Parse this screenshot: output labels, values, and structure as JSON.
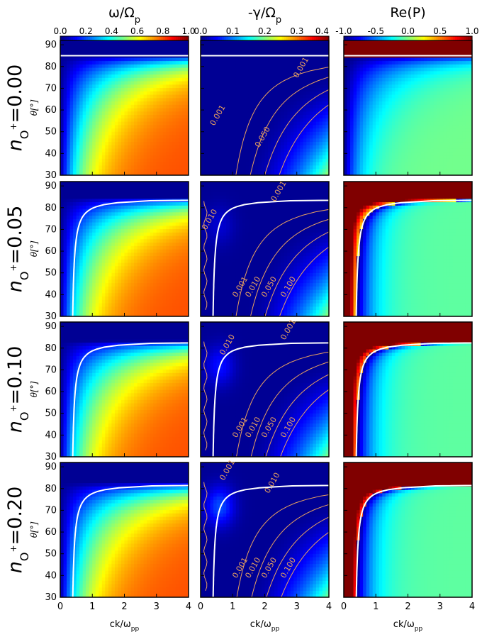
{
  "chart_data": {
    "type": "heatmap",
    "layout": "4 rows x 3 columns of panels sharing axes",
    "columns": [
      {
        "title": "ω/Ω",
        "title_sub": "p",
        "colorbar_ticks": [
          "0.0",
          "0.2",
          "0.4",
          "0.6",
          "0.8",
          "1.0"
        ],
        "colorbar_range": [
          0,
          1
        ]
      },
      {
        "title": "-γ/Ω",
        "title_sub": "p",
        "colorbar_ticks": [
          "0.0",
          "0.1",
          "0.2",
          "0.3",
          "0.4"
        ],
        "colorbar_range": [
          0,
          0.4
        ]
      },
      {
        "title": "Re(P)",
        "title_sub": "",
        "colorbar_ticks": [
          "-1.0",
          "-0.5",
          "0.0",
          "0.5",
          "1.0"
        ],
        "colorbar_range": [
          -1,
          1
        ]
      }
    ],
    "rows": [
      {
        "label_base": "n",
        "label_sub": "O",
        "label_sup": "+",
        "label_value": "=0.00",
        "n_O": 0.0,
        "cutoff_theta": 85.0,
        "contours": [
          {
            "text": "0.001",
            "x": 0.6,
            "y": 57
          },
          {
            "text": "0.050",
            "x": 2.0,
            "y": 47
          },
          {
            "text": "0.001",
            "x": 3.2,
            "y": 79
          }
        ]
      },
      {
        "label_base": "n",
        "label_sub": "O",
        "label_sup": "+",
        "label_value": "=0.05",
        "n_O": 0.05,
        "cutoff_theta": 84.5,
        "contours": [
          {
            "text": "0.001",
            "x": 2.5,
            "y": 87
          },
          {
            "text": "0.010",
            "x": 0.35,
            "y": 74
          },
          {
            "text": "0.001",
            "x": 1.3,
            "y": 43
          },
          {
            "text": "0.010",
            "x": 1.7,
            "y": 43
          },
          {
            "text": "0.050",
            "x": 2.2,
            "y": 43
          },
          {
            "text": "0.100",
            "x": 2.8,
            "y": 43
          }
        ]
      },
      {
        "label_base": "n",
        "label_sub": "O",
        "label_sup": "+",
        "label_value": "=0.10",
        "n_O": 0.1,
        "cutoff_theta": 83.5,
        "contours": [
          {
            "text": "0.001",
            "x": 2.8,
            "y": 88
          },
          {
            "text": "0.010",
            "x": 0.9,
            "y": 81
          },
          {
            "text": "0.001",
            "x": 1.3,
            "y": 43
          },
          {
            "text": "0.010",
            "x": 1.7,
            "y": 43
          },
          {
            "text": "0.050",
            "x": 2.2,
            "y": 43
          },
          {
            "text": "0.100",
            "x": 2.8,
            "y": 43
          }
        ]
      },
      {
        "label_base": "n",
        "label_sub": "O",
        "label_sup": "+",
        "label_value": "=0.20",
        "n_O": 0.2,
        "cutoff_theta": 82.5,
        "contours": [
          {
            "text": "0.001",
            "x": 0.9,
            "y": 88
          },
          {
            "text": "0.010",
            "x": 2.3,
            "y": 82
          },
          {
            "text": "0.001",
            "x": 1.3,
            "y": 43
          },
          {
            "text": "0.010",
            "x": 1.7,
            "y": 43
          },
          {
            "text": "0.050",
            "x": 2.2,
            "y": 43
          },
          {
            "text": "0.100",
            "x": 2.8,
            "y": 43
          }
        ]
      }
    ],
    "xlabel": "ck/ω",
    "xlabel_sub": "pp",
    "ylabel": "θ[°]",
    "xlim": [
      0,
      4
    ],
    "ylim": [
      30,
      92
    ],
    "xticks": [
      "0",
      "1",
      "2",
      "3",
      "4"
    ],
    "yticks": [
      "30",
      "40",
      "50",
      "60",
      "70",
      "80",
      "90"
    ]
  }
}
